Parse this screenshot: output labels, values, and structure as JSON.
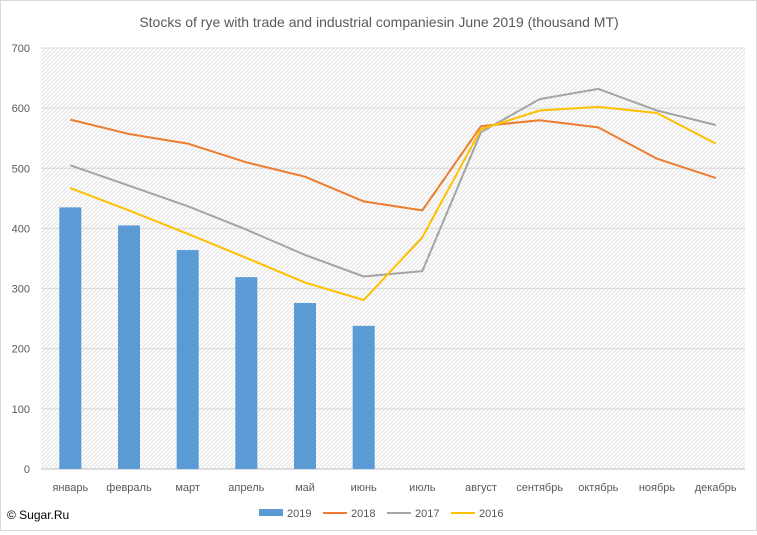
{
  "chart_data": {
    "type": "bar+line",
    "title": "Stocks of rye with trade and industrial companiesin June 2019 (thousand MT)",
    "categories": [
      "январь",
      "февраль",
      "март",
      "апрель",
      "май",
      "июнь",
      "июль",
      "август",
      "сентябрь",
      "октябрь",
      "ноябрь",
      "декабрь"
    ],
    "ylim": [
      0,
      700
    ],
    "yticks": [
      0,
      100,
      200,
      300,
      400,
      500,
      600,
      700
    ],
    "grid": true,
    "legend_position": "bottom",
    "bar_series": {
      "name": "2019",
      "color": "#5b9bd5",
      "values": [
        435,
        405,
        364,
        319,
        276,
        238
      ]
    },
    "line_series": [
      {
        "name": "2018",
        "color": "#ed7d31",
        "values": [
          581,
          557,
          541,
          510,
          486,
          445,
          430,
          570,
          580,
          568,
          516,
          484
        ]
      },
      {
        "name": "2017",
        "color": "#a5a5a5",
        "values": [
          505,
          471,
          437,
          398,
          356,
          320,
          329,
          560,
          615,
          632,
          596,
          572
        ]
      },
      {
        "name": "2016",
        "color": "#ffc000",
        "values": [
          467,
          430,
          391,
          351,
          310,
          281,
          385,
          565,
          596,
          602,
          592,
          541
        ]
      }
    ]
  },
  "watermark": "© Sugar.Ru"
}
